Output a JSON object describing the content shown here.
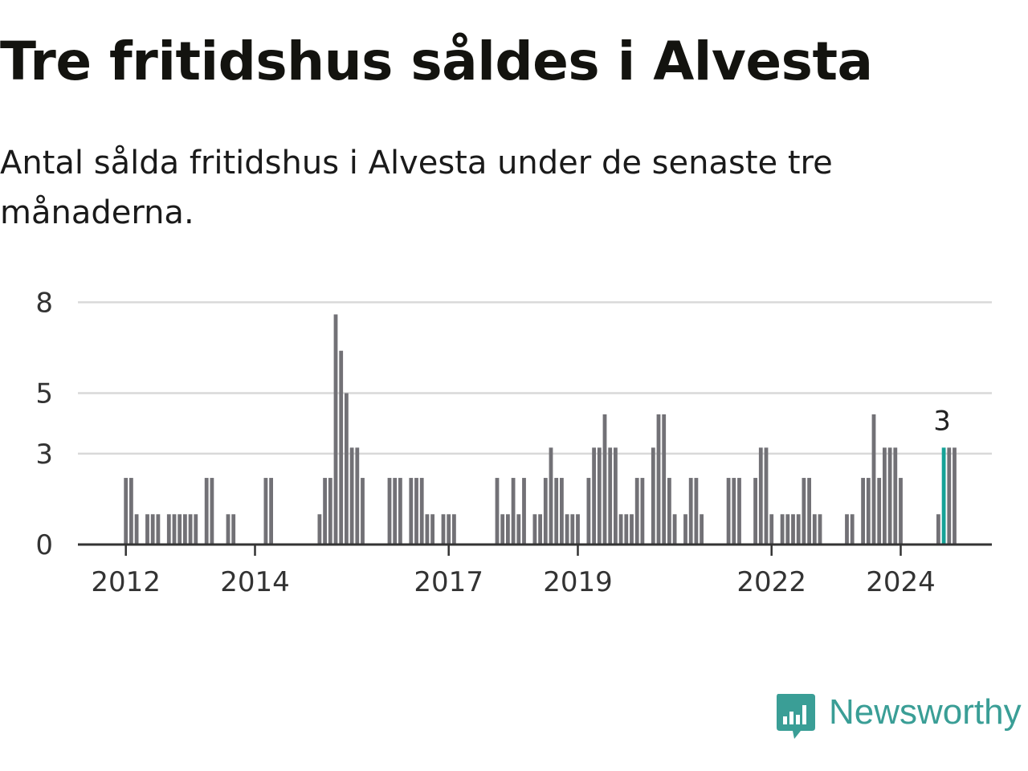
{
  "title": "Tre fritidshus såldes i Alvesta",
  "subtitle": "Antal sålda fritidshus i Alvesta under de senaste tre månaderna.",
  "brand": {
    "name": "Newsworthy",
    "color": "#3a9e96",
    "icon": "newsworthy-logo-icon"
  },
  "chart_data": {
    "type": "bar",
    "ylim": [
      0,
      8.7
    ],
    "yticks": [
      0,
      3,
      5,
      8
    ],
    "grid": true,
    "xtick_labels": [
      {
        "label": "2012",
        "index": 1
      },
      {
        "label": "2014",
        "index": 25
      },
      {
        "label": "2017",
        "index": 61
      },
      {
        "label": "2019",
        "index": 85
      },
      {
        "label": "2022",
        "index": 121
      },
      {
        "label": "2024",
        "index": 145
      }
    ],
    "values": [
      0,
      2.2,
      2.2,
      1,
      0,
      1,
      1,
      1,
      0,
      1,
      1,
      1,
      1,
      1,
      1,
      0,
      2.2,
      2.2,
      0,
      0,
      1,
      1,
      0,
      0,
      0,
      0,
      0,
      2.2,
      2.2,
      0,
      0,
      0,
      0,
      0,
      0,
      0,
      0,
      1,
      2.2,
      2.2,
      7.6,
      6.4,
      5,
      3.2,
      3.2,
      2.2,
      0,
      0,
      0,
      0,
      2.2,
      2.2,
      2.2,
      0,
      2.2,
      2.2,
      2.2,
      1,
      1,
      0,
      1,
      1,
      1,
      0,
      0,
      0,
      0,
      0,
      0,
      0,
      2.2,
      1,
      1,
      2.2,
      1,
      2.2,
      0,
      1,
      1,
      2.2,
      3.2,
      2.2,
      2.2,
      1,
      1,
      1,
      0,
      2.2,
      3.2,
      3.2,
      4.3,
      3.2,
      3.2,
      1,
      1,
      1,
      2.2,
      2.2,
      0,
      3.2,
      4.3,
      4.3,
      2.2,
      1,
      0,
      1,
      2.2,
      2.2,
      1,
      0,
      0,
      0,
      0,
      2.2,
      2.2,
      2.2,
      0,
      0,
      2.2,
      3.2,
      3.2,
      1,
      0,
      1,
      1,
      1,
      1,
      2.2,
      2.2,
      1,
      1,
      0,
      0,
      0,
      0,
      1,
      1,
      0,
      2.2,
      2.2,
      4.3,
      2.2,
      3.2,
      3.2,
      3.2,
      2.2,
      0,
      0,
      0,
      0,
      0,
      0,
      1,
      3.2,
      3.2,
      3.2
    ],
    "highlight": {
      "index": 153,
      "color": "#16a297",
      "label": "3"
    },
    "bar_color": "#727176"
  }
}
